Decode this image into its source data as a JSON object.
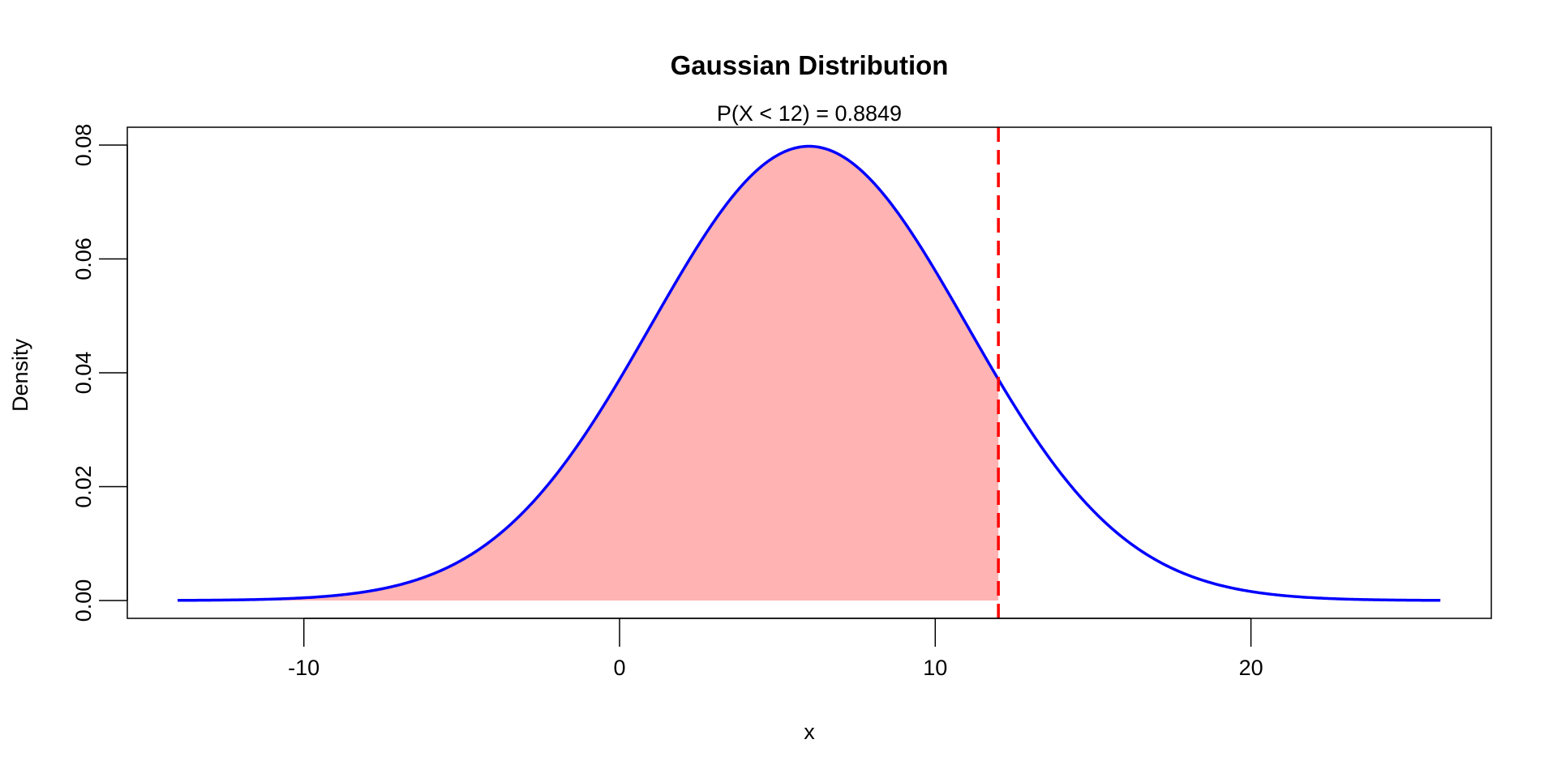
{
  "chart_data": {
    "type": "area",
    "title": "Gaussian Distribution",
    "subtitle": "P(X < 12) = 0.8849",
    "xlabel": "x",
    "ylabel": "Density",
    "distribution": {
      "mean": 6,
      "sd": 5
    },
    "x_range": [
      -14,
      26
    ],
    "xlim": [
      -15.6,
      27.6
    ],
    "ylim": [
      -0.0032,
      0.083
    ],
    "x_ticks": [
      -10,
      0,
      10,
      20
    ],
    "x_tick_labels": [
      "-10",
      "0",
      "10",
      "20"
    ],
    "y_ticks": [
      0,
      0.02,
      0.04,
      0.06,
      0.08
    ],
    "y_tick_labels": [
      "0.00",
      "0.02",
      "0.04",
      "0.06",
      "0.08"
    ],
    "threshold": 12,
    "shaded_region": [
      -14,
      12
    ],
    "probability": 0.8849,
    "grid": false,
    "colors": {
      "curve": "#0000ff",
      "fill": "#ffb3b3",
      "threshold": "#ff0000"
    }
  }
}
